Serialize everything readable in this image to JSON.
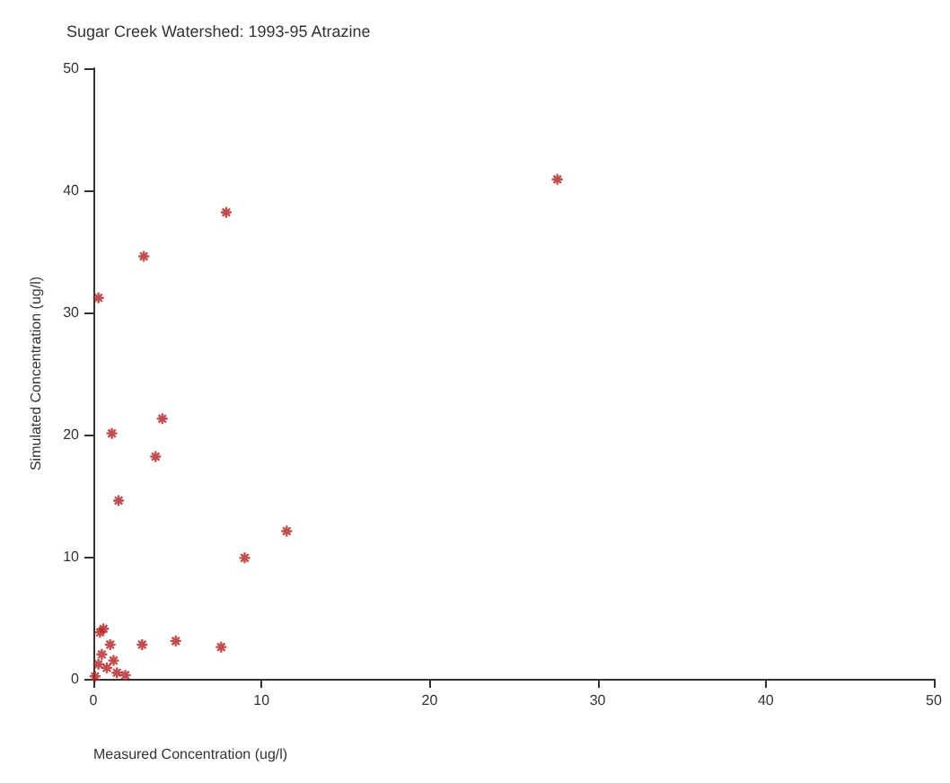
{
  "chart_data": {
    "type": "scatter",
    "title": "Sugar Creek Watershed: 1993-95 Atrazine",
    "xlabel": "Measured Concentration (ug/l)",
    "ylabel": "Simulated Concentration (ug/l)",
    "x": [
      27.6,
      7.9,
      3.0,
      0.3,
      4.1,
      3.7,
      1.1,
      1.5,
      11.5,
      9.0,
      4.9,
      2.9,
      7.6,
      1.0,
      0.4,
      0.6,
      0.3,
      0.8,
      1.4,
      1.9,
      0.1,
      0.5,
      1.2
    ],
    "values": [
      40.9,
      38.2,
      34.6,
      31.2,
      21.3,
      18.2,
      20.1,
      14.6,
      12.1,
      9.9,
      3.1,
      2.8,
      2.6,
      2.8,
      3.8,
      4.1,
      1.2,
      0.9,
      0.5,
      0.3,
      0.2,
      2.0,
      1.5
    ],
    "color": "#b22222",
    "marker": "cross",
    "grid": false,
    "xlim": [
      0,
      50
    ],
    "xticks": [
      0,
      10,
      20,
      30,
      40,
      50
    ],
    "ylim": [
      0,
      50
    ],
    "yticks": [
      0,
      10,
      20,
      30,
      40,
      50
    ]
  }
}
